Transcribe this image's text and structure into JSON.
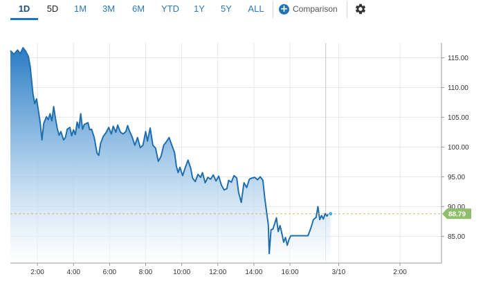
{
  "toolbar": {
    "ranges": [
      "1D",
      "5D",
      "1M",
      "3M",
      "6M",
      "YTD",
      "1Y",
      "5Y",
      "ALL"
    ],
    "active_range": "1D",
    "comparison_label": "Comparison",
    "icons": {
      "comparison": "plus-circle-icon",
      "settings": "gear-icon"
    }
  },
  "colors": {
    "accent": "#1c73b9",
    "line": "#1f6fae",
    "area_top": "#2a7bc4",
    "price_tag": "#8fbf6a",
    "dot": "#3ab0e3",
    "reference_line": "#c9b870"
  },
  "chart_data": {
    "type": "area",
    "title": "",
    "xlabel": "",
    "ylabel": "",
    "ylim": [
      80.5,
      117.5
    ],
    "x_ticks": [
      "2:00",
      "4:00",
      "6:00",
      "8:00",
      "10:00",
      "12:00",
      "14:00",
      "16:00",
      "3/10",
      "2:00"
    ],
    "x_tick_hours": [
      2,
      4,
      6,
      8,
      10,
      12,
      14,
      16,
      18.7,
      22.1
    ],
    "x_range_hours": [
      0.5,
      24.4
    ],
    "y_ticks": [
      85,
      90,
      95,
      100,
      105,
      110,
      115
    ],
    "y_tick_labels": [
      "85.00",
      "90.00",
      "95.00",
      "100.00",
      "105.00",
      "110.00",
      "115.00"
    ],
    "last_price": 88.79,
    "last_price_label": "88.79",
    "grid": true,
    "series": [
      {
        "values": [
          [
            0.5,
            116.2
          ],
          [
            0.7,
            115.6
          ],
          [
            0.9,
            116.3
          ],
          [
            1.05,
            115.7
          ],
          [
            1.2,
            116.7
          ],
          [
            1.35,
            116.1
          ],
          [
            1.5,
            115.2
          ],
          [
            1.6,
            113.5
          ],
          [
            1.75,
            109.0
          ],
          [
            1.85,
            107.3
          ],
          [
            1.95,
            108.1
          ],
          [
            2.05,
            106.2
          ],
          [
            2.15,
            104.2
          ],
          [
            2.25,
            101.2
          ],
          [
            2.35,
            104.0
          ],
          [
            2.5,
            105.1
          ],
          [
            2.6,
            104.6
          ],
          [
            2.7,
            105.6
          ],
          [
            2.8,
            104.4
          ],
          [
            2.9,
            106.8
          ],
          [
            3.0,
            104.8
          ],
          [
            3.1,
            103.1
          ],
          [
            3.2,
            102.0
          ],
          [
            3.3,
            102.6
          ],
          [
            3.45,
            101.2
          ],
          [
            3.55,
            101.6
          ],
          [
            3.65,
            103.0
          ],
          [
            3.8,
            103.3
          ],
          [
            3.9,
            101.9
          ],
          [
            4.0,
            102.9
          ],
          [
            4.1,
            102.1
          ],
          [
            4.2,
            104.2
          ],
          [
            4.3,
            103.2
          ],
          [
            4.4,
            105.6
          ],
          [
            4.5,
            103.0
          ],
          [
            4.6,
            103.8
          ],
          [
            4.8,
            104.1
          ],
          [
            4.9,
            102.9
          ],
          [
            5.0,
            103.0
          ],
          [
            5.15,
            101.6
          ],
          [
            5.3,
            99.0
          ],
          [
            5.4,
            98.6
          ],
          [
            5.5,
            100.6
          ],
          [
            5.65,
            101.8
          ],
          [
            5.8,
            102.4
          ],
          [
            5.95,
            103.3
          ],
          [
            6.1,
            102.2
          ],
          [
            6.2,
            103.5
          ],
          [
            6.35,
            102.5
          ],
          [
            6.45,
            103.7
          ],
          [
            6.6,
            102.5
          ],
          [
            6.75,
            102.2
          ],
          [
            6.9,
            102.6
          ],
          [
            7.0,
            103.6
          ],
          [
            7.1,
            102.7
          ],
          [
            7.25,
            101.7
          ],
          [
            7.4,
            100.3
          ],
          [
            7.55,
            101.6
          ],
          [
            7.7,
            99.9
          ],
          [
            7.85,
            100.3
          ],
          [
            8.0,
            102.6
          ],
          [
            8.1,
            101.0
          ],
          [
            8.25,
            103.2
          ],
          [
            8.4,
            100.3
          ],
          [
            8.55,
            99.8
          ],
          [
            8.7,
            97.6
          ],
          [
            8.85,
            98.4
          ],
          [
            9.0,
            100.3
          ],
          [
            9.15,
            100.9
          ],
          [
            9.3,
            101.6
          ],
          [
            9.45,
            100.3
          ],
          [
            9.6,
            99.1
          ],
          [
            9.7,
            96.8
          ],
          [
            9.8,
            95.7
          ],
          [
            9.9,
            96.6
          ],
          [
            10.05,
            95.2
          ],
          [
            10.2,
            96.6
          ],
          [
            10.35,
            97.8
          ],
          [
            10.5,
            96.4
          ],
          [
            10.6,
            94.8
          ],
          [
            10.75,
            94.2
          ],
          [
            10.9,
            95.4
          ],
          [
            11.05,
            94.9
          ],
          [
            11.15,
            95.7
          ],
          [
            11.3,
            94.0
          ],
          [
            11.45,
            94.9
          ],
          [
            11.6,
            94.6
          ],
          [
            11.75,
            95.3
          ],
          [
            11.9,
            94.3
          ],
          [
            12.05,
            95.1
          ],
          [
            12.2,
            93.6
          ],
          [
            12.35,
            92.8
          ],
          [
            12.5,
            93.0
          ],
          [
            12.6,
            94.4
          ],
          [
            12.75,
            94.1
          ],
          [
            12.9,
            95.2
          ],
          [
            13.05,
            94.8
          ],
          [
            13.15,
            92.4
          ],
          [
            13.3,
            90.7
          ],
          [
            13.45,
            94.0
          ],
          [
            13.6,
            93.2
          ],
          [
            13.75,
            94.6
          ],
          [
            13.9,
            94.8
          ],
          [
            14.05,
            94.9
          ],
          [
            14.2,
            94.5
          ],
          [
            14.35,
            95.0
          ],
          [
            14.5,
            94.4
          ],
          [
            14.6,
            91.5
          ],
          [
            14.7,
            89.2
          ],
          [
            14.8,
            86.9
          ],
          [
            14.85,
            82.1
          ],
          [
            14.95,
            86.1
          ],
          [
            15.05,
            86.2
          ],
          [
            15.15,
            87.1
          ],
          [
            15.25,
            88.1
          ],
          [
            15.35,
            85.8
          ],
          [
            15.45,
            86.8
          ],
          [
            15.55,
            85.5
          ],
          [
            15.65,
            84.0
          ],
          [
            15.75,
            84.8
          ],
          [
            15.85,
            83.5
          ],
          [
            15.95,
            84.5
          ],
          [
            16.05,
            85.1
          ],
          [
            16.5,
            85.1
          ],
          [
            17.0,
            85.1
          ],
          [
            17.15,
            86.3
          ],
          [
            17.3,
            87.8
          ],
          [
            17.45,
            88.2
          ],
          [
            17.55,
            90.0
          ],
          [
            17.65,
            87.8
          ],
          [
            17.75,
            88.5
          ],
          [
            17.85,
            87.9
          ],
          [
            17.95,
            88.8
          ],
          [
            18.05,
            88.4
          ],
          [
            18.15,
            88.8
          ],
          [
            18.25,
            88.79
          ]
        ]
      }
    ]
  }
}
